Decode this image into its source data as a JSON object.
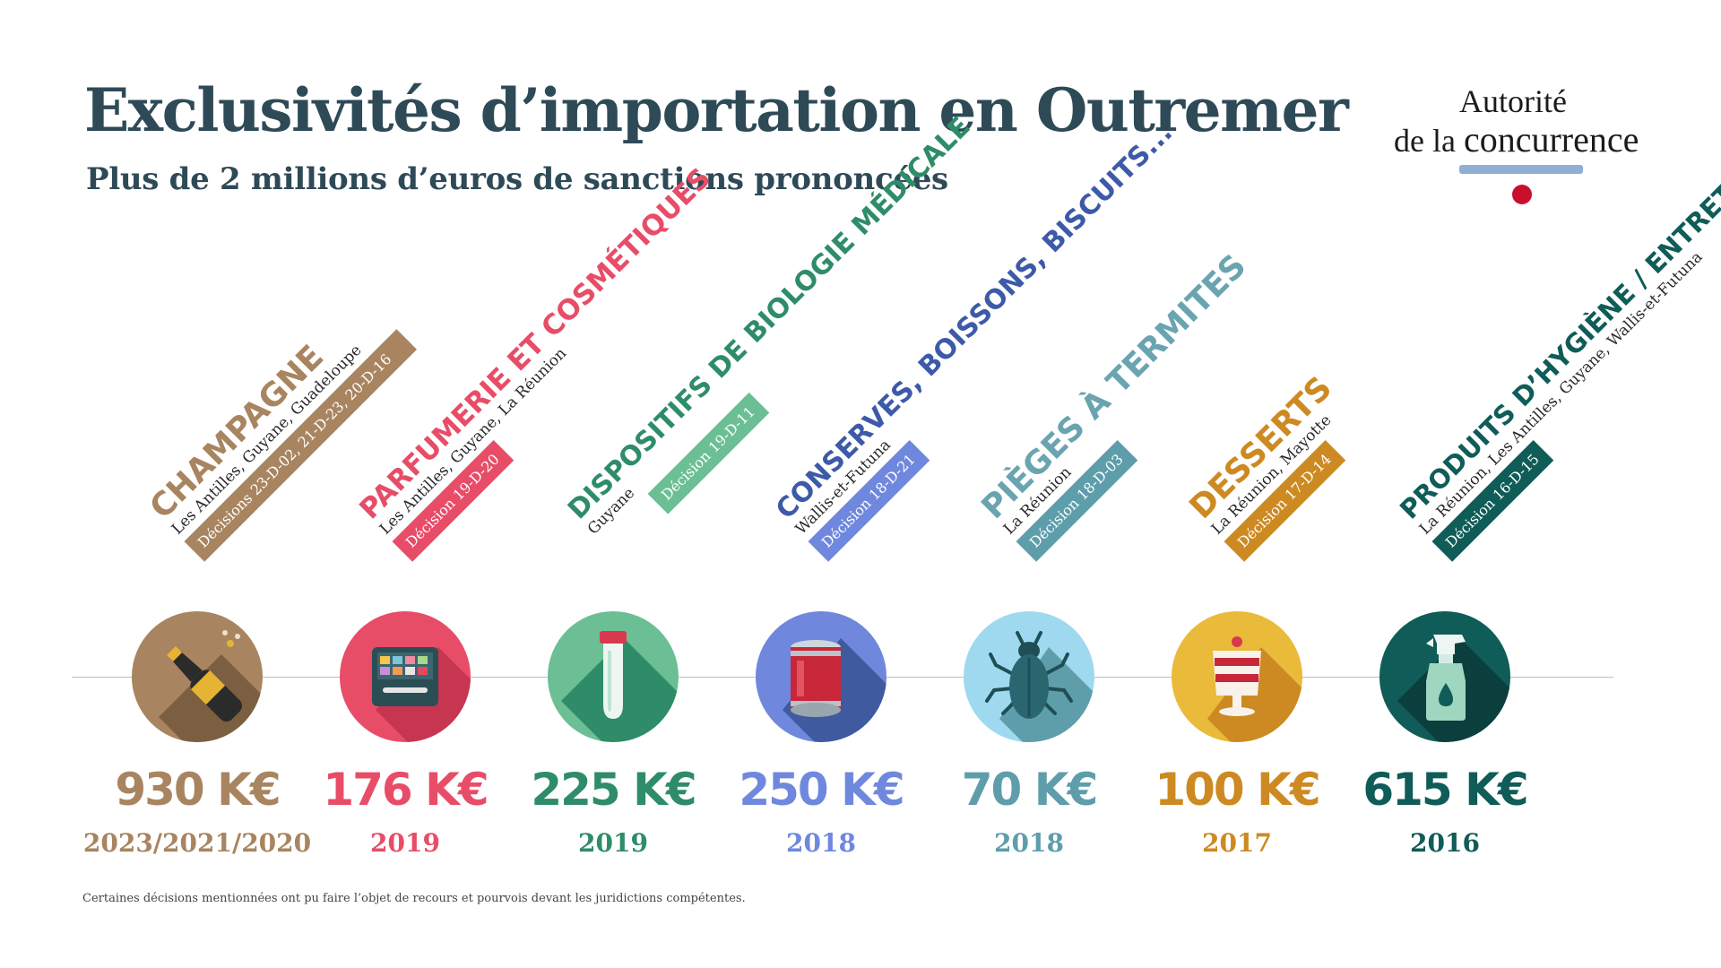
{
  "title": "Exclusivités d’importation en Outremer",
  "subtitle": "Plus de 2 millions d’euros de sanctions prononcées",
  "logo": {
    "line1": "Autorité",
    "line2a": "de la",
    "line2b": "concurrence"
  },
  "footnote": "Certaines décisions mentionnées ont pu faire l’objet de recours et pourvois devant les juridictions compétentes.",
  "items": [
    {
      "category": "CHAMPAGNE",
      "places": "Les Antilles, Guyane, Guadeloupe",
      "decision": "Décisions 23-D-02, 21-D-23, 20-D-16",
      "amount": "930 K€",
      "year": "2023/2021/2020",
      "color": "#a88560",
      "icon": "champagne-icon"
    },
    {
      "category": "PARFUMERIE ET COSMÉTIQUES",
      "places": "Les Antilles, Guyane, La Réunion",
      "decision": "Décision 19-D-20",
      "amount": "176 K€",
      "year": "2019",
      "color": "#e84d68",
      "icon": "makeup-palette-icon"
    },
    {
      "category": "DISPOSITIFS DE BIOLOGIE MÉDICALE",
      "places": "Guyane",
      "decision": "Décision 19-D-11",
      "amount": "225 K€",
      "year": "2019",
      "color": "#2e8d68",
      "icon": "test-tube-icon"
    },
    {
      "category": "CONSERVES, BOISSONS, BISCUITS...",
      "places": "Wallis-et-Futuna",
      "decision": "Décision 18-D-21",
      "amount": "250 K€",
      "year": "2018",
      "color": "#6f88dd",
      "icon": "tin-can-icon"
    },
    {
      "category": "PIÈGES À TERMITES",
      "places": "La Réunion",
      "decision": "Décision 18-D-03",
      "amount": "70 K€",
      "year": "2018",
      "color": "#5e9eab",
      "icon": "termite-icon"
    },
    {
      "category": "DESSERTS",
      "places": "La Réunion, Mayotte",
      "decision": "Décision 17-D-14",
      "amount": "100 K€",
      "year": "2017",
      "color": "#cd8a22",
      "icon": "dessert-icon"
    },
    {
      "category": "PRODUITS D’HYGIÈNE / ENTRETIEN",
      "places": "La Réunion, Les Antilles, Guyane, Wallis-et-Futuna",
      "decision": "Décision 16-D-15",
      "amount": "615 K€",
      "year": "2016",
      "color": "#0f5c58",
      "icon": "spray-bottle-icon"
    }
  ]
}
